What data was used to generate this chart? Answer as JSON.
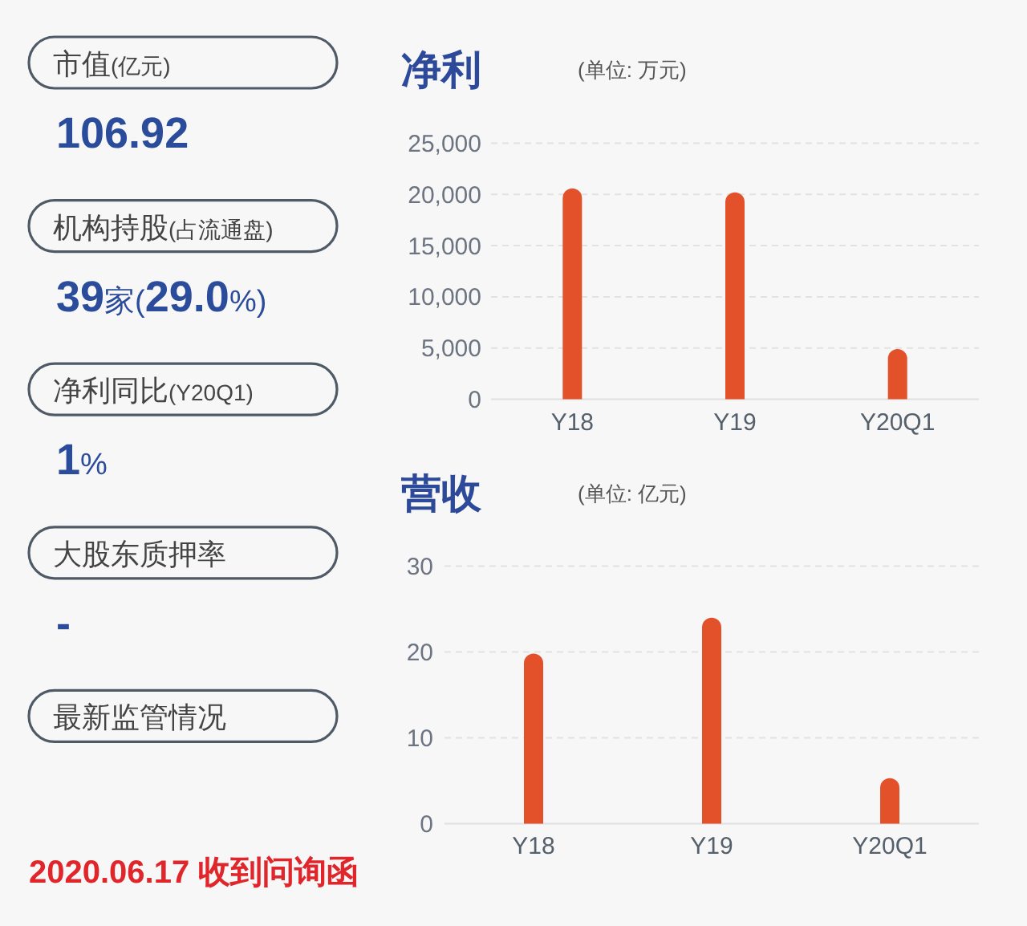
{
  "chart_data": [
    {
      "type": "other",
      "categories": [
        "市值(亿元)",
        "机构持股(占流通盘)",
        "净利同比(Y20Q1)",
        "大股东质押率",
        "最新监管情况"
      ],
      "value_labels": [
        "106.92",
        "39家(29.0%)",
        "1%",
        "-",
        null
      ],
      "annotations": [
        "2020.06.17 收到问询函"
      ]
    },
    {
      "type": "bar",
      "title": "净利",
      "subtitle": "(单位: 万元)",
      "categories": [
        "Y18",
        "Y19",
        "Y20Q1"
      ],
      "values": [
        20600,
        20200,
        4900
      ],
      "color": "#e2512a",
      "ylim": [
        0,
        25000
      ],
      "yticks": [
        0,
        {
          "value": 5000,
          "label": "5,000"
        },
        {
          "value": 10000,
          "label": "10,000"
        },
        {
          "value": 15000,
          "label": "15,000"
        },
        {
          "value": 20000,
          "label": "20,000"
        },
        {
          "value": 25000,
          "label": "25,000"
        }
      ],
      "grid": "y"
    },
    {
      "type": "bar",
      "title": "营收",
      "subtitle": "(单位: 亿元)",
      "categories": [
        "Y18",
        "Y19",
        "Y20Q1"
      ],
      "values": [
        19.8,
        24.0,
        5.3
      ],
      "color": "#e2512a",
      "ylim": [
        0,
        30
      ],
      "yticks": [
        0,
        10,
        20,
        30
      ],
      "grid": "y"
    }
  ]
}
